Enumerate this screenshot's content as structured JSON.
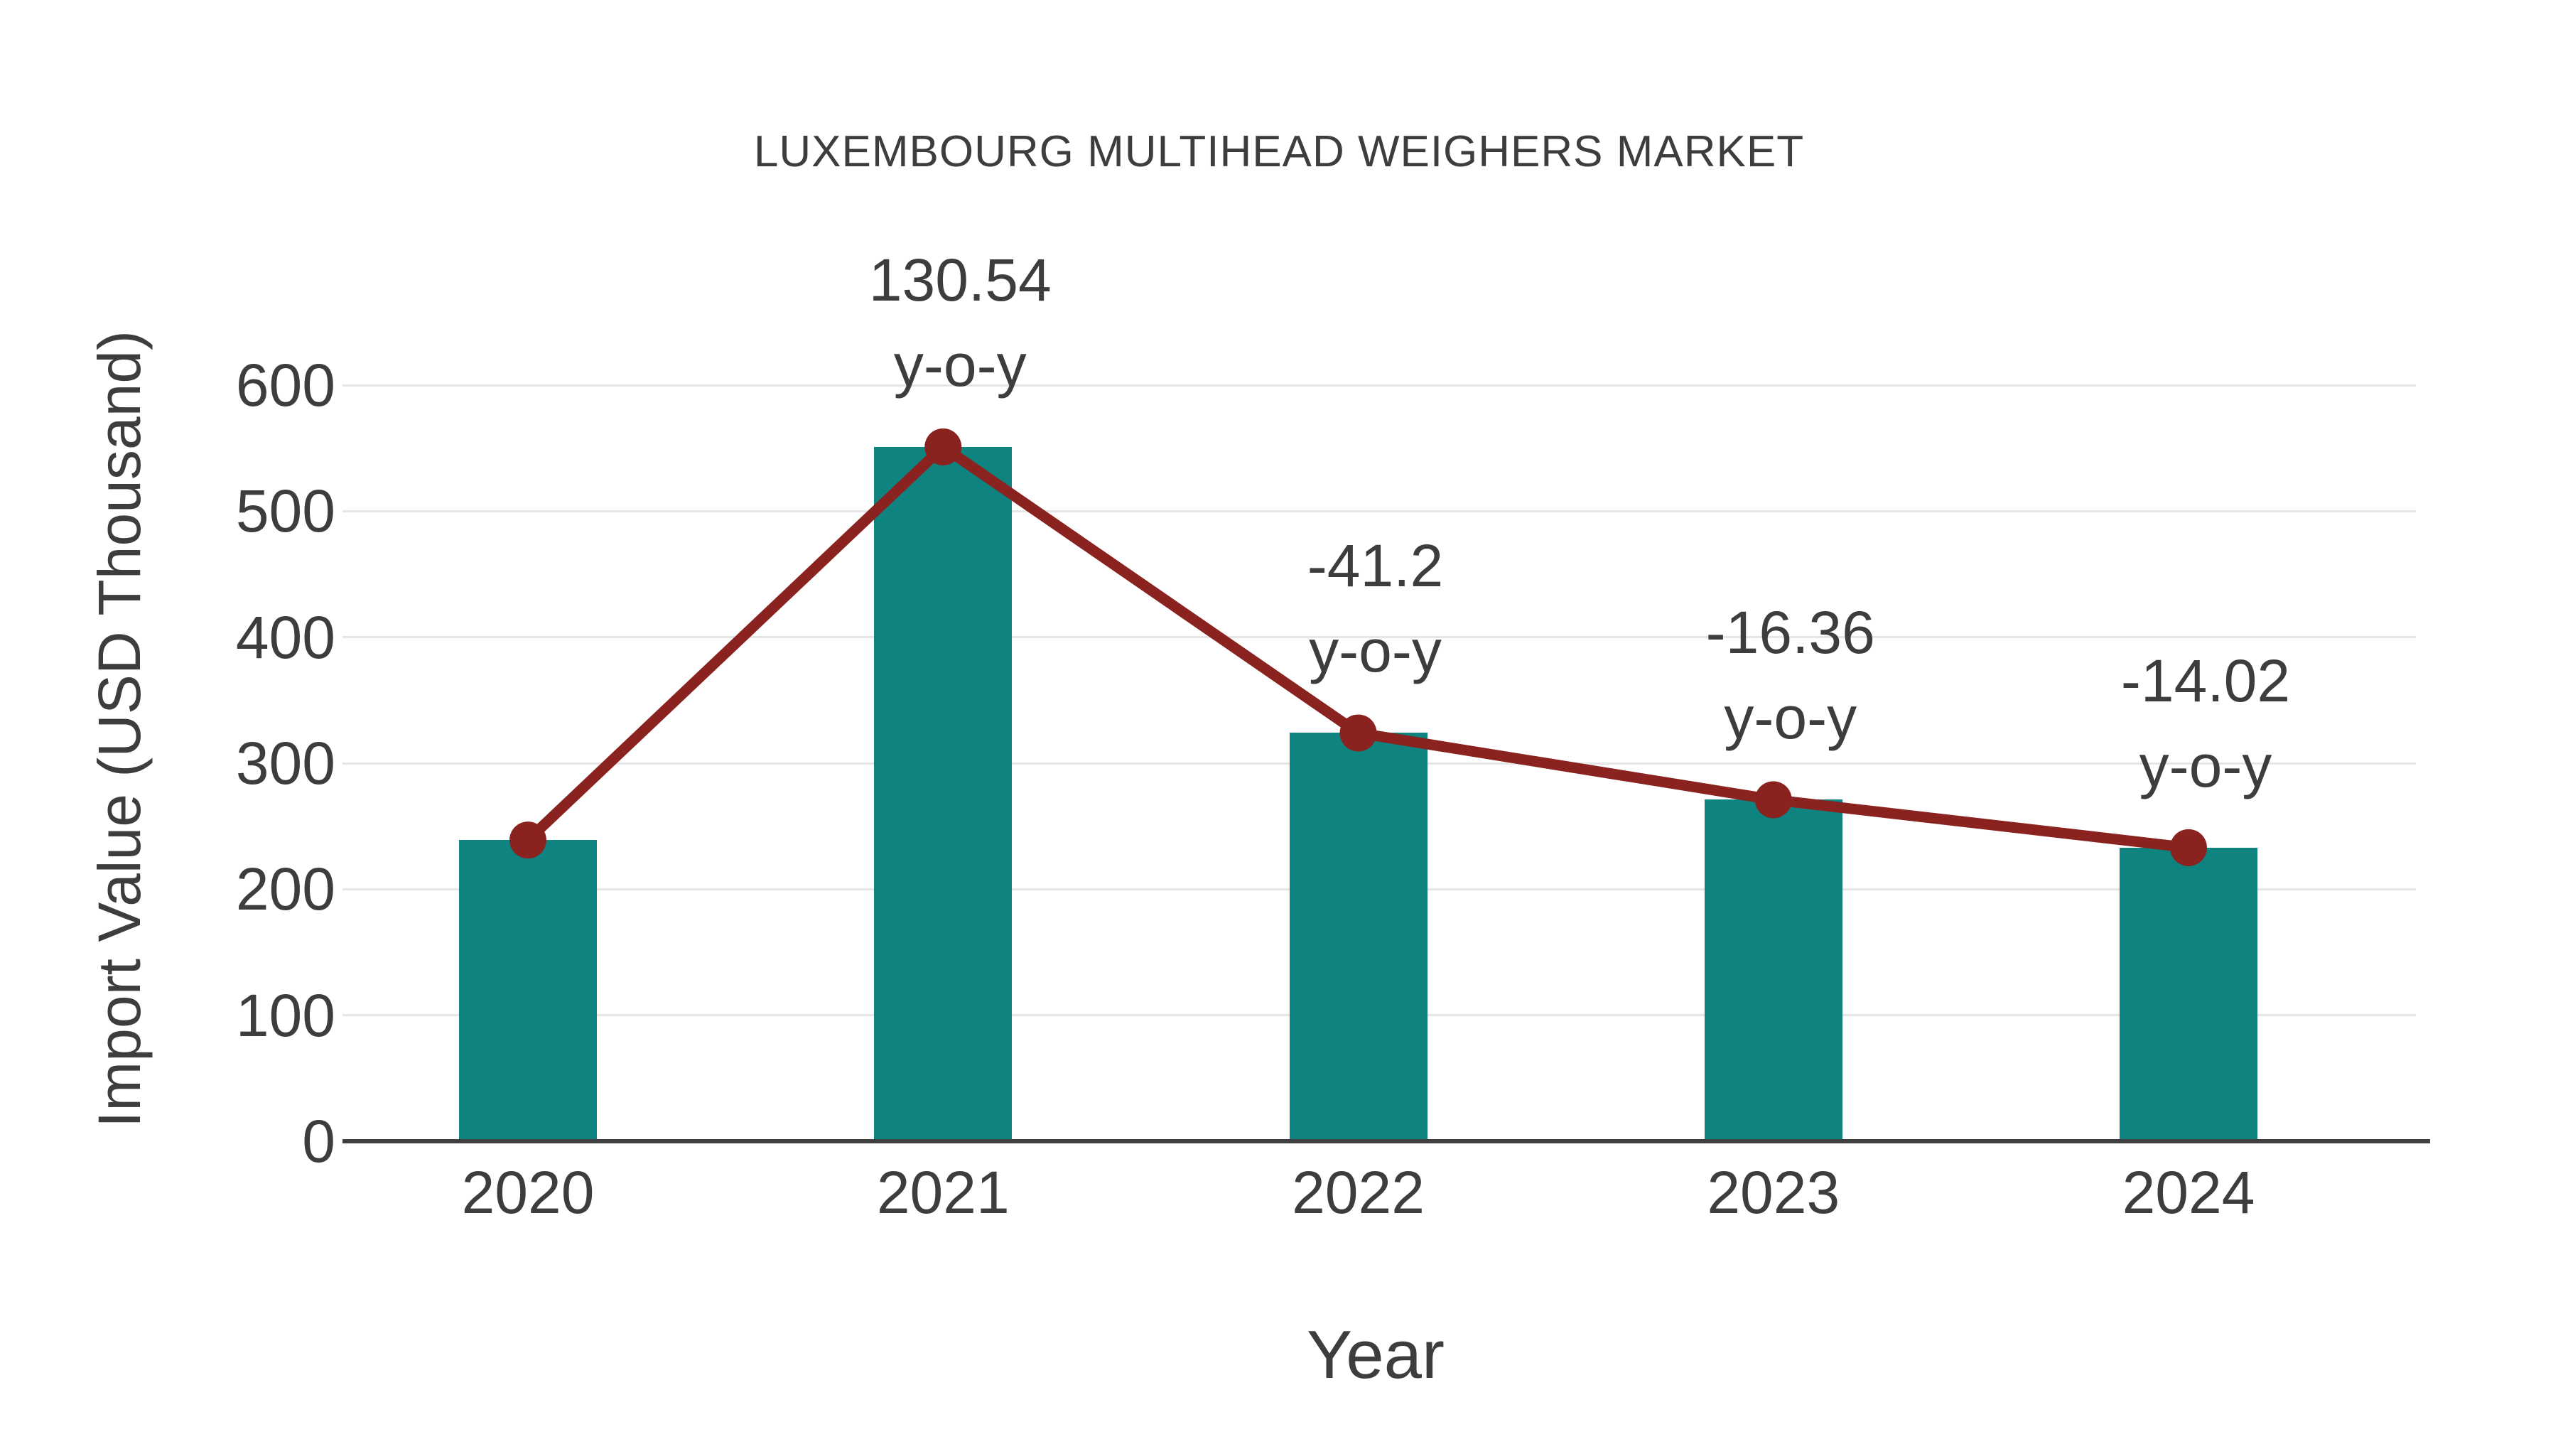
{
  "page": {
    "background": "#ffffff"
  },
  "chart_data": {
    "type": "bar",
    "overlay": "line",
    "title": "LUXEMBOURG MULTIHEAD WEIGHERS MARKET",
    "xlabel": "Year",
    "ylabel": "Import Value (USD Thousand)",
    "categories": [
      "2020",
      "2021",
      "2022",
      "2023",
      "2024"
    ],
    "series": [
      {
        "name": "Import Value bars",
        "type": "bar",
        "values": [
          239,
          551,
          324,
          271,
          233
        ]
      },
      {
        "name": "Import Value trend line",
        "type": "line",
        "values": [
          239,
          551,
          324,
          271,
          233
        ]
      }
    ],
    "annotations": [
      {
        "category": "2021",
        "value_text": "130.54",
        "suffix_text": "y-o-y"
      },
      {
        "category": "2022",
        "value_text": "-41.2",
        "suffix_text": "y-o-y"
      },
      {
        "category": "2023",
        "value_text": "-16.36",
        "suffix_text": "y-o-y"
      },
      {
        "category": "2024",
        "value_text": "-14.02",
        "suffix_text": "y-o-y"
      }
    ],
    "ylim": [
      0,
      600
    ],
    "yticks": [
      0,
      100,
      200,
      300,
      400,
      500,
      600
    ],
    "grid": true,
    "legend_position": "none",
    "colors": {
      "bar": "#0e837f",
      "line": "#8a231f",
      "marker": "#8a231f",
      "text": "#3d3d3d",
      "grid": "#e6e6e6",
      "axis": "#404040",
      "background": "#ffffff"
    }
  }
}
